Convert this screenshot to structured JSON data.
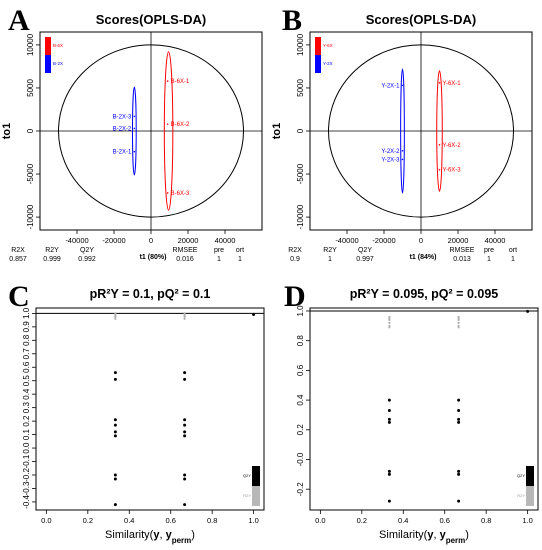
{
  "chart_data": [
    {
      "panel": "A",
      "type": "scatter",
      "title": "Scores(OPLS-DA)",
      "xlabel": "t1 (80%)",
      "ylabel": "to1",
      "xlim": [
        -60000,
        60000
      ],
      "ylim": [
        -11500,
        11500
      ],
      "xticks": [
        -40000,
        -20000,
        0,
        20000,
        40000
      ],
      "xtick_labels": [
        "-40000",
        "-20000",
        "0",
        "20000",
        "40000"
      ],
      "yticks": [
        10000,
        5000,
        0,
        -5000,
        -10000
      ],
      "ytick_labels": [
        "10000",
        "5000",
        "0",
        "-5000",
        "-10000"
      ],
      "hotelling_ellipse": {
        "cx": 0,
        "cy": 0,
        "rx": 50000,
        "ry": 10000
      },
      "groups": [
        {
          "name": "B-6X",
          "color": "#ff0000",
          "points": [
            {
              "label": "B-6X-1",
              "x": 9000,
              "y": 5800
            },
            {
              "label": "B-6X-2",
              "x": 9000,
              "y": 800
            },
            {
              "label": "B-6X-3",
              "x": 9000,
              "y": -7200
            }
          ],
          "ellipse": {
            "cx": 9500,
            "cy": 0,
            "rx": 2300,
            "ry": 9200
          }
        },
        {
          "name": "B-2X",
          "color": "#0000ff",
          "points": [
            {
              "label": "B-2X-3",
              "x": -9000,
              "y": 1700
            },
            {
              "label": "B-2X-2",
              "x": -9000,
              "y": 300
            },
            {
              "label": "B-2X-1",
              "x": -9000,
              "y": -2400
            }
          ],
          "ellipse": {
            "cx": -9000,
            "cy": 0,
            "rx": 1000,
            "ry": 5100
          }
        }
      ],
      "stats_table": {
        "headers": [
          "R2X",
          "R2Y",
          "Q2Y",
          "RMSEE",
          "pre",
          "ort"
        ],
        "values": [
          "0.857",
          "0.999",
          "0.992",
          "0.016",
          "1",
          "1"
        ]
      }
    },
    {
      "panel": "B",
      "type": "scatter",
      "title": "Scores(OPLS-DA)",
      "xlabel": "t1 (84%)",
      "ylabel": "to1",
      "xlim": [
        -60000,
        60000
      ],
      "ylim": [
        -11500,
        11500
      ],
      "xticks": [
        -40000,
        -20000,
        0,
        20000,
        40000
      ],
      "xtick_labels": [
        "-40000",
        "-20000",
        "0",
        "20000",
        "40000"
      ],
      "yticks": [
        10000,
        5000,
        0,
        -5000,
        -10000
      ],
      "ytick_labels": [
        "10000",
        "5000",
        "0",
        "-5000",
        "-10000"
      ],
      "hotelling_ellipse": {
        "cx": 0,
        "cy": 0,
        "rx": 50000,
        "ry": 10000
      },
      "groups": [
        {
          "name": "Y-6X",
          "color": "#ff0000",
          "points": [
            {
              "label": "Y-6X-1",
              "x": 10000,
              "y": 5600
            },
            {
              "label": "Y-6X-2",
              "x": 10000,
              "y": -1600
            },
            {
              "label": "Y-6X-3",
              "x": 10000,
              "y": -4500
            }
          ],
          "ellipse": {
            "cx": 10000,
            "cy": 0,
            "rx": 1500,
            "ry": 7000
          }
        },
        {
          "name": "Y-2X",
          "color": "#0000ff",
          "points": [
            {
              "label": "Y-2X-1",
              "x": -10000,
              "y": 5300
            },
            {
              "label": "Y-2X-2",
              "x": -10000,
              "y": -2300
            },
            {
              "label": "Y-2X-3",
              "x": -10000,
              "y": -3300
            }
          ],
          "ellipse": {
            "cx": -10000,
            "cy": 0,
            "rx": 1000,
            "ry": 7200
          }
        }
      ],
      "stats_table": {
        "headers": [
          "R2X",
          "R2Y",
          "Q2Y",
          "RMSEE",
          "pre",
          "ort"
        ],
        "values": [
          "0.9",
          "1",
          "0.997",
          "0.013",
          "1",
          "1"
        ]
      }
    },
    {
      "panel": "C",
      "type": "scatter",
      "title": "pR²Y = 0.1, pQ² = 0.1",
      "xlabel_main": "Similarity(",
      "xlabel_y": "y",
      "xlabel_sep": ", ",
      "xlabel_yperm": "y",
      "xlabel_sub": "perm",
      "xlabel_close": ")",
      "xlim": [
        -0.05,
        1.05
      ],
      "ylim": [
        -0.46,
        1.04
      ],
      "xticks": [
        0.0,
        0.2,
        0.4,
        0.6,
        0.8,
        1.0
      ],
      "xtick_labels": [
        "0.0",
        "0.2",
        "0.4",
        "0.6",
        "0.8",
        "1.0"
      ],
      "yticks": [
        1.0,
        0.9,
        0.8,
        0.7,
        0.6,
        0.5,
        0.4,
        0.3,
        0.2,
        0.1,
        0.0,
        -0.1,
        -0.2,
        -0.3,
        -0.4
      ],
      "ytick_labels": [
        "1.0",
        "0.9",
        "0.8",
        "0.7",
        "0.6",
        "0.5",
        "0.4",
        "0.3",
        "0.2",
        "0.1",
        "0.0",
        "-0.1",
        "-0.2",
        "-0.3",
        "-0.4"
      ],
      "reference_line": 1.0,
      "series": [
        {
          "name": "R2Y",
          "color": "#b0b0b0",
          "points": [
            [
              0.333,
              1.0
            ],
            [
              0.333,
              0.99
            ],
            [
              0.333,
              0.98
            ],
            [
              0.333,
              0.975
            ],
            [
              0.333,
              0.96
            ],
            [
              0.667,
              1.0
            ],
            [
              0.667,
              0.99
            ],
            [
              0.667,
              0.98
            ],
            [
              0.667,
              0.975
            ],
            [
              0.667,
              0.96
            ],
            [
              1.0,
              0.999
            ]
          ]
        },
        {
          "name": "Q2Y",
          "color": "#000000",
          "points": [
            [
              0.333,
              0.56
            ],
            [
              0.333,
              0.51
            ],
            [
              0.333,
              0.21
            ],
            [
              0.333,
              0.17
            ],
            [
              0.333,
              0.12
            ],
            [
              0.333,
              0.09
            ],
            [
              0.333,
              -0.2
            ],
            [
              0.333,
              -0.23
            ],
            [
              0.333,
              -0.42
            ],
            [
              0.667,
              0.56
            ],
            [
              0.667,
              0.51
            ],
            [
              0.667,
              0.21
            ],
            [
              0.667,
              0.17
            ],
            [
              0.667,
              0.12
            ],
            [
              0.667,
              0.09
            ],
            [
              0.667,
              -0.2
            ],
            [
              0.667,
              -0.23
            ],
            [
              0.667,
              -0.42
            ],
            [
              1.0,
              0.992
            ]
          ]
        }
      ],
      "legend_bars": [
        {
          "name": "Q2Y",
          "color": "#000000"
        },
        {
          "name": "R2Y",
          "color": "#b8b8b8"
        }
      ]
    },
    {
      "panel": "D",
      "type": "scatter",
      "title": "pR²Y = 0.095, pQ² = 0.095",
      "xlabel_main": "Similarity(",
      "xlabel_y": "y",
      "xlabel_sep": ", ",
      "xlabel_yperm": "y",
      "xlabel_sub": "perm",
      "xlabel_close": ")",
      "xlim": [
        -0.05,
        1.05
      ],
      "ylim": [
        -0.34,
        1.02
      ],
      "xticks": [
        0.0,
        0.2,
        0.4,
        0.6,
        0.8,
        1.0
      ],
      "xtick_labels": [
        "0.0",
        "0.2",
        "0.4",
        "0.6",
        "0.8",
        "1.0"
      ],
      "yticks": [
        1.0,
        0.8,
        0.6,
        0.4,
        0.2,
        0.0,
        -0.2
      ],
      "ytick_labels": [
        "1.0",
        "0.8",
        "0.6",
        "0.4",
        "0.2",
        "-0.0",
        "-0.2"
      ],
      "reference_line": 1.0,
      "series": [
        {
          "name": "R2Y",
          "color": "#b0b0b0",
          "points": [
            [
              0.333,
              0.96
            ],
            [
              0.333,
              0.95
            ],
            [
              0.333,
              0.94
            ],
            [
              0.333,
              0.92
            ],
            [
              0.333,
              0.9
            ],
            [
              0.333,
              0.89
            ],
            [
              0.667,
              0.96
            ],
            [
              0.667,
              0.95
            ],
            [
              0.667,
              0.94
            ],
            [
              0.667,
              0.92
            ],
            [
              0.667,
              0.9
            ],
            [
              0.667,
              0.89
            ],
            [
              1.0,
              1.0
            ]
          ]
        },
        {
          "name": "Q2Y",
          "color": "#000000",
          "points": [
            [
              0.333,
              0.4
            ],
            [
              0.333,
              0.33
            ],
            [
              0.333,
              0.27
            ],
            [
              0.333,
              0.25
            ],
            [
              0.333,
              -0.08
            ],
            [
              0.333,
              -0.1
            ],
            [
              0.333,
              -0.28
            ],
            [
              0.667,
              0.4
            ],
            [
              0.667,
              0.33
            ],
            [
              0.667,
              0.27
            ],
            [
              0.667,
              0.25
            ],
            [
              0.667,
              -0.08
            ],
            [
              0.667,
              -0.1
            ],
            [
              0.667,
              -0.28
            ],
            [
              1.0,
              0.997
            ]
          ]
        }
      ],
      "legend_bars": [
        {
          "name": "Q2Y",
          "color": "#000000"
        },
        {
          "name": "R2Y",
          "color": "#b8b8b8"
        }
      ]
    }
  ]
}
